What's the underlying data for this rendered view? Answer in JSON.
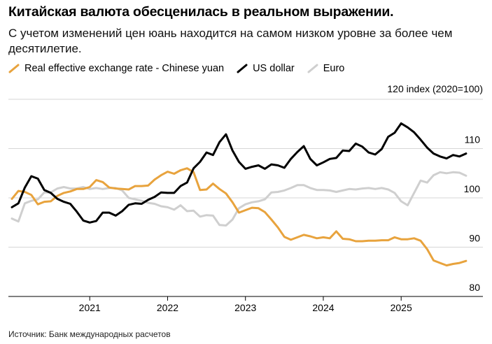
{
  "header": {
    "title": "Китайская валюта обесценилась в реальном выражении.",
    "subtitle": "С учетом изменений цен юань находится на самом низком уровне за более чем десятилетие."
  },
  "legend": {
    "items": [
      {
        "label": "Real effective exchange rate - Chinese yuan",
        "color": "#e8a33d"
      },
      {
        "label": "US dollar",
        "color": "#000000"
      },
      {
        "label": "Euro",
        "color": "#cfcfcf"
      }
    ]
  },
  "unit_label": "120 index (2020=100)",
  "source": "Источник: Банк международных расчетов",
  "chart_data": {
    "type": "line",
    "title": "Китайская валюта обесценилась в реальном выражении.",
    "subtitle": "С учетом изменений цен юань находится на самом низком уровне за более чем десятилетие.",
    "ylabel": "index (2020=100)",
    "ylim": [
      80,
      120
    ],
    "yticks": [
      80,
      90,
      100,
      110,
      120
    ],
    "ytick_labels": [
      "80",
      "90",
      "100",
      "110",
      "120"
    ],
    "xlim": [
      "2020-01",
      "2025-12"
    ],
    "xtick_labels": [
      "2021",
      "2022",
      "2023",
      "2024",
      "2025"
    ],
    "grid": true,
    "legend_position": "top-left",
    "x": [
      "2020-01",
      "2020-02",
      "2020-03",
      "2020-04",
      "2020-05",
      "2020-06",
      "2020-07",
      "2020-08",
      "2020-09",
      "2020-10",
      "2020-11",
      "2020-12",
      "2021-01",
      "2021-02",
      "2021-03",
      "2021-04",
      "2021-05",
      "2021-06",
      "2021-07",
      "2021-08",
      "2021-09",
      "2021-10",
      "2021-11",
      "2021-12",
      "2022-01",
      "2022-02",
      "2022-03",
      "2022-04",
      "2022-05",
      "2022-06",
      "2022-07",
      "2022-08",
      "2022-09",
      "2022-10",
      "2022-11",
      "2022-12",
      "2023-01",
      "2023-02",
      "2023-03",
      "2023-04",
      "2023-05",
      "2023-06",
      "2023-07",
      "2023-08",
      "2023-09",
      "2023-10",
      "2023-11",
      "2023-12",
      "2024-01",
      "2024-02",
      "2024-03",
      "2024-04",
      "2024-05",
      "2024-06",
      "2024-07",
      "2024-08",
      "2024-09",
      "2024-10",
      "2024-11",
      "2024-12",
      "2025-01",
      "2025-02",
      "2025-03",
      "2025-04",
      "2025-05",
      "2025-06",
      "2025-07",
      "2025-08",
      "2025-09",
      "2025-10",
      "2025-11"
    ],
    "series": [
      {
        "name": "Real effective exchange rate - Chinese yuan",
        "color": "#e8a33d",
        "values": [
          99.8,
          101.4,
          101.2,
          100.6,
          98.7,
          99.2,
          99.3,
          100.4,
          101.0,
          101.3,
          101.8,
          101.8,
          102.2,
          103.6,
          103.2,
          102.1,
          101.9,
          101.8,
          101.7,
          102.4,
          102.4,
          102.5,
          103.7,
          104.6,
          105.3,
          104.9,
          105.6,
          106.0,
          105.2,
          101.6,
          101.7,
          102.9,
          101.8,
          100.9,
          99.1,
          97.0,
          97.5,
          98.0,
          97.9,
          97.1,
          95.6,
          94.0,
          92.1,
          91.5,
          92.0,
          92.5,
          92.2,
          91.8,
          92.0,
          91.8,
          93.2,
          91.7,
          91.6,
          91.2,
          91.2,
          91.3,
          91.3,
          91.4,
          91.4,
          92.0,
          91.6,
          91.6,
          91.8,
          91.3,
          89.6,
          87.3,
          86.8,
          86.3,
          86.6,
          86.8,
          87.2
        ]
      },
      {
        "name": "US dollar",
        "color": "#000000",
        "values": [
          98.1,
          98.9,
          102.1,
          104.4,
          103.9,
          101.6,
          101.0,
          99.8,
          99.2,
          98.8,
          97.2,
          95.4,
          95.0,
          95.3,
          97.0,
          97.0,
          96.4,
          97.3,
          98.6,
          98.9,
          98.8,
          99.6,
          100.2,
          101.1,
          101.0,
          101.0,
          102.4,
          103.1,
          106.0,
          107.3,
          109.2,
          108.7,
          111.3,
          112.9,
          109.6,
          107.3,
          105.9,
          106.3,
          106.6,
          105.9,
          106.8,
          106.6,
          106.1,
          107.9,
          109.3,
          110.5,
          107.9,
          106.6,
          107.2,
          107.9,
          108.1,
          109.6,
          109.5,
          111.0,
          110.4,
          109.2,
          108.8,
          109.9,
          112.4,
          113.2,
          115.1,
          114.3,
          113.3,
          111.8,
          110.2,
          109.0,
          108.4,
          108.0,
          108.7,
          108.4,
          109.0
        ]
      },
      {
        "name": "Euro",
        "color": "#cfcfcf",
        "values": [
          95.8,
          95.2,
          98.9,
          99.4,
          99.7,
          101.1,
          101.1,
          101.9,
          102.2,
          101.9,
          101.9,
          102.2,
          101.8,
          102.0,
          101.8,
          102.0,
          102.0,
          101.5,
          100.0,
          99.7,
          99.4,
          99.0,
          98.8,
          98.3,
          98.1,
          97.6,
          98.5,
          97.3,
          97.4,
          96.2,
          96.5,
          96.4,
          94.5,
          94.4,
          95.6,
          97.9,
          98.7,
          99.1,
          99.3,
          99.7,
          101.1,
          101.2,
          101.5,
          102.0,
          102.6,
          102.6,
          102.0,
          101.6,
          101.6,
          101.5,
          101.2,
          101.5,
          101.8,
          101.7,
          101.9,
          102.0,
          101.8,
          102.0,
          101.7,
          101.0,
          99.3,
          98.5,
          101.0,
          103.5,
          103.1,
          104.6,
          105.2,
          105.0,
          105.2,
          105.1,
          104.5
        ]
      }
    ]
  }
}
